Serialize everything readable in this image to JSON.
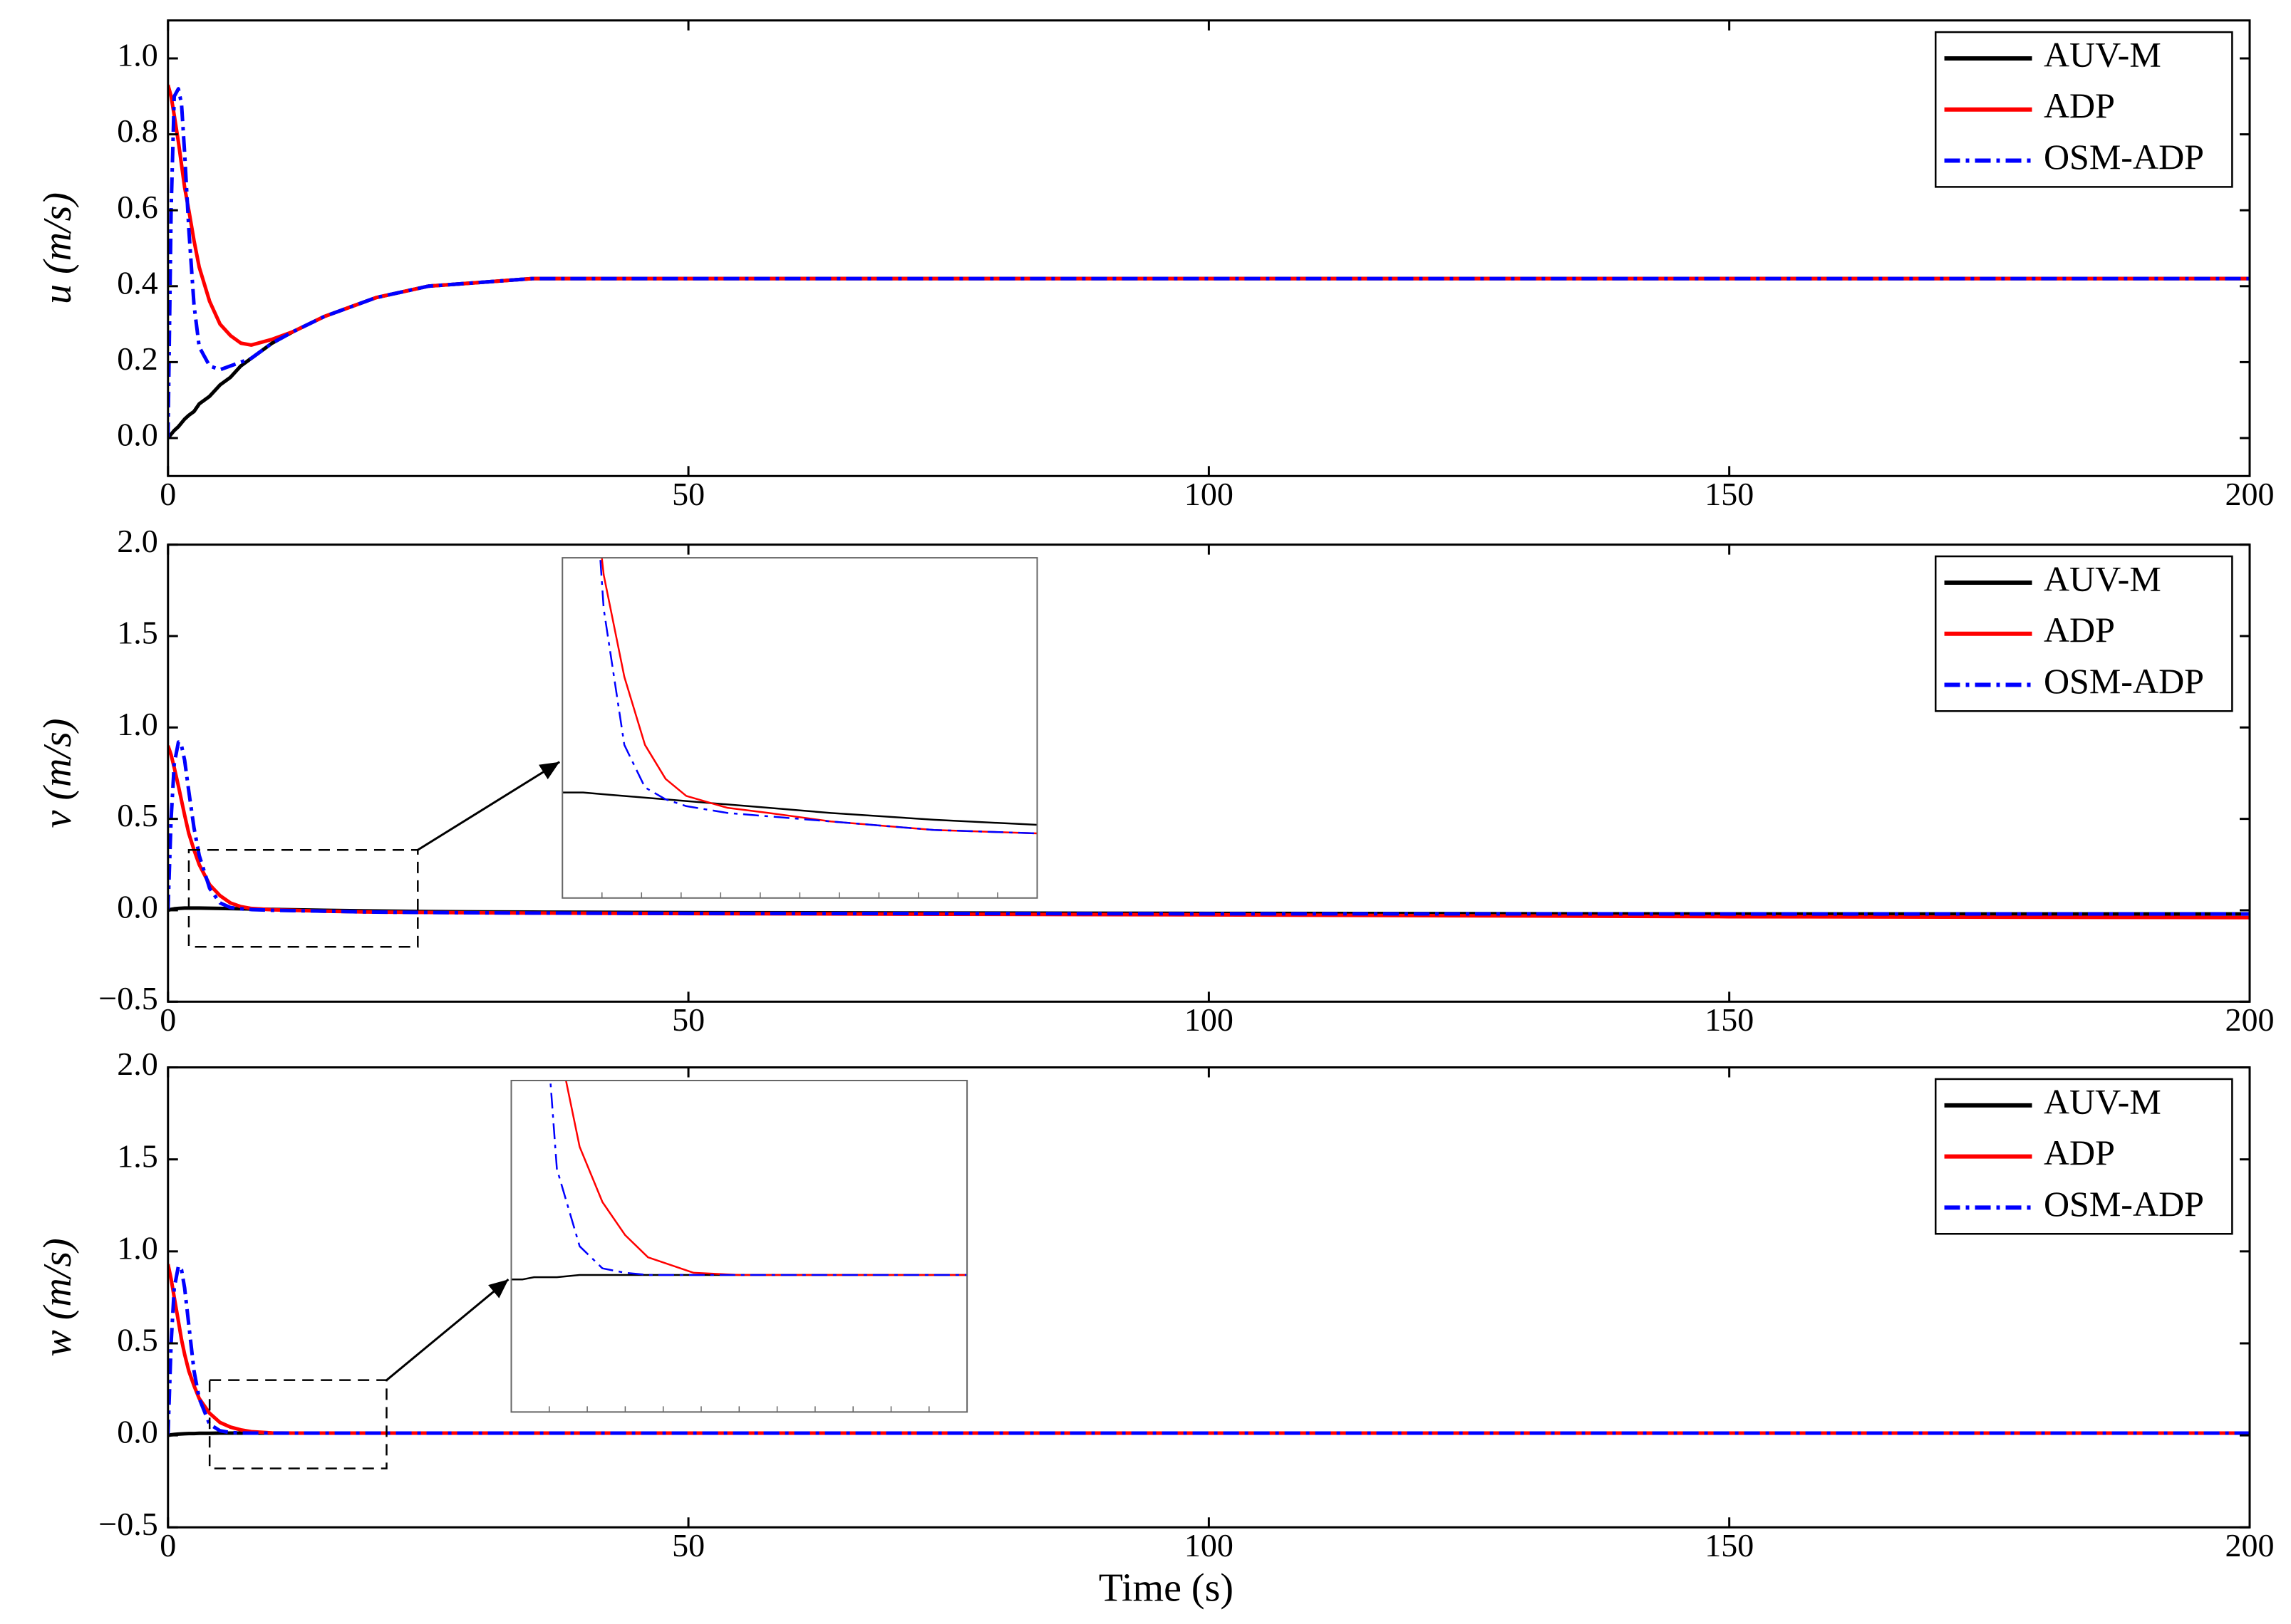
{
  "chart_data": [
    {
      "type": "line",
      "ylabel": "u (m/s)",
      "legend": "upper right",
      "x": [
        0,
        0.3,
        0.6,
        1,
        1.3,
        1.6,
        2,
        2.5,
        3,
        4,
        5,
        6,
        7,
        8,
        10,
        12,
        15,
        20,
        25,
        30,
        35,
        40,
        50,
        100,
        150,
        200
      ],
      "xlim": [
        0,
        200
      ],
      "xticks": [
        0,
        50,
        100,
        150,
        200
      ],
      "ylim": [
        -0.1,
        1.1
      ],
      "yticks": [
        {
          "value": 0,
          "label": "0.0"
        },
        0.2,
        0.4,
        0.6,
        0.8,
        {
          "value": 1,
          "label": "1.0"
        }
      ],
      "series": [
        {
          "name": "AUV-M",
          "color": "#000000",
          "dash": "solid",
          "values": [
            0,
            0.01,
            0.02,
            0.03,
            0.04,
            0.05,
            0.06,
            0.07,
            0.09,
            0.11,
            0.14,
            0.16,
            0.19,
            0.21,
            0.25,
            0.28,
            0.32,
            0.37,
            0.4,
            0.41,
            0.42,
            0.42,
            0.42,
            0.42,
            0.42,
            0.42
          ]
        },
        {
          "name": "ADP",
          "color": "#ff0000",
          "dash": "solid",
          "values": [
            0.93,
            0.9,
            0.85,
            0.78,
            0.72,
            0.66,
            0.6,
            0.52,
            0.45,
            0.36,
            0.3,
            0.27,
            0.25,
            0.245,
            0.26,
            0.28,
            0.32,
            0.37,
            0.4,
            0.41,
            0.42,
            0.42,
            0.42,
            0.42,
            0.42,
            0.42
          ]
        },
        {
          "name": "OSM-ADP",
          "color": "#0000ff",
          "dash": "dashdot",
          "values": [
            0,
            0.6,
            0.9,
            0.92,
            0.88,
            0.75,
            0.55,
            0.35,
            0.24,
            0.19,
            0.18,
            0.19,
            0.2,
            0.21,
            0.25,
            0.28,
            0.32,
            0.37,
            0.4,
            0.41,
            0.42,
            0.42,
            0.42,
            0.42,
            0.42,
            0.42
          ]
        }
      ]
    },
    {
      "type": "line",
      "ylabel": "v (m/s)",
      "legend": "upper right",
      "x": [
        0,
        0.3,
        0.6,
        1,
        1.3,
        1.6,
        2,
        2.5,
        3,
        4,
        5,
        6,
        7,
        8,
        10,
        12,
        15,
        20,
        25,
        30,
        35,
        40,
        50,
        100,
        150,
        200
      ],
      "xlim": [
        0,
        200
      ],
      "xticks": [
        0,
        50,
        100,
        150,
        200
      ],
      "ylim": [
        -0.5,
        2.0
      ],
      "yticks": [
        {
          "value": -0.5,
          "label": "−0.5"
        },
        {
          "value": 0,
          "label": "0.0"
        },
        0.5,
        {
          "value": 1,
          "label": "1.0"
        },
        1.5,
        {
          "value": 2,
          "label": "2.0"
        }
      ],
      "zoom_box": {
        "xlim": [
          2,
          24
        ],
        "ylim": [
          -0.2,
          0.33
        ]
      },
      "inset": {
        "xlim": [
          2,
          25
        ],
        "ylim": [
          -0.05,
          0.15
        ]
      },
      "series": [
        {
          "name": "AUV-M",
          "color": "#000000",
          "dash": "solid",
          "values": [
            0,
            0.005,
            0.008,
            0.01,
            0.011,
            0.012,
            0.012,
            0.012,
            0.012,
            0.011,
            0.01,
            0.009,
            0.008,
            0.007,
            0.005,
            0.003,
            0,
            -0.004,
            -0.007,
            -0.009,
            -0.01,
            -0.011,
            -0.013,
            -0.017,
            -0.02,
            -0.02
          ]
        },
        {
          "name": "ADP",
          "color": "#ff0000",
          "dash": "solid",
          "values": [
            0.9,
            0.85,
            0.78,
            0.68,
            0.6,
            0.52,
            0.42,
            0.33,
            0.25,
            0.14,
            0.08,
            0.04,
            0.02,
            0.01,
            0.003,
            0,
            -0.005,
            -0.01,
            -0.012,
            -0.014,
            -0.015,
            -0.016,
            -0.018,
            -0.025,
            -0.035,
            -0.04
          ]
        },
        {
          "name": "OSM-ADP",
          "color": "#0000ff",
          "dash": "dashdot",
          "values": [
            0,
            0.5,
            0.8,
            0.92,
            0.9,
            0.82,
            0.65,
            0.45,
            0.3,
            0.12,
            0.04,
            0.015,
            0.008,
            0.004,
            0,
            -0.002,
            -0.005,
            -0.01,
            -0.012,
            -0.014,
            -0.015,
            -0.016,
            -0.017,
            -0.019,
            -0.02,
            -0.02
          ]
        }
      ]
    },
    {
      "type": "line",
      "ylabel": "w (m/s)",
      "xlabel": "Time (s)",
      "legend": "upper right",
      "x": [
        0,
        0.3,
        0.6,
        1,
        1.3,
        1.6,
        2,
        2.5,
        3,
        4,
        5,
        6,
        7,
        8,
        10,
        12,
        15,
        20,
        25,
        30,
        35,
        40,
        50,
        100,
        150,
        200
      ],
      "xlim": [
        0,
        200
      ],
      "xticks": [
        0,
        50,
        100,
        150,
        200
      ],
      "ylim": [
        -0.5,
        2.0
      ],
      "yticks": [
        {
          "value": -0.5,
          "label": "−0.5"
        },
        {
          "value": 0,
          "label": "0.0"
        },
        0.5,
        {
          "value": 1,
          "label": "1.0"
        },
        1.5,
        {
          "value": 2,
          "label": "2.0"
        }
      ],
      "zoom_box": {
        "xlim": [
          4,
          21
        ],
        "ylim": [
          -0.18,
          0.3
        ]
      },
      "inset": {
        "xlim": [
          2,
          22
        ],
        "ylim": [
          -0.05,
          0.1
        ]
      },
      "series": [
        {
          "name": "AUV-M",
          "color": "#000000",
          "dash": "solid",
          "values": [
            0,
            0.003,
            0.005,
            0.007,
            0.008,
            0.009,
            0.01,
            0.01,
            0.011,
            0.011,
            0.012,
            0.012,
            0.012,
            0.012,
            0.012,
            0.012,
            0.012,
            0.012,
            0.012,
            0.012,
            0.012,
            0.012,
            0.012,
            0.012,
            0.012,
            0.012
          ]
        },
        {
          "name": "ADP",
          "color": "#ff0000",
          "dash": "solid",
          "values": [
            0.93,
            0.85,
            0.75,
            0.62,
            0.52,
            0.44,
            0.35,
            0.27,
            0.2,
            0.12,
            0.07,
            0.045,
            0.03,
            0.02,
            0.013,
            0.012,
            0.012,
            0.012,
            0.012,
            0.012,
            0.012,
            0.012,
            0.012,
            0.012,
            0.012,
            0.012
          ]
        },
        {
          "name": "OSM-ADP",
          "color": "#0000ff",
          "dash": "dashdot",
          "values": [
            0,
            0.5,
            0.8,
            0.92,
            0.9,
            0.8,
            0.6,
            0.35,
            0.2,
            0.06,
            0.025,
            0.015,
            0.013,
            0.012,
            0.012,
            0.012,
            0.012,
            0.012,
            0.012,
            0.012,
            0.012,
            0.012,
            0.012,
            0.012,
            0.012,
            0.012
          ]
        }
      ]
    }
  ]
}
